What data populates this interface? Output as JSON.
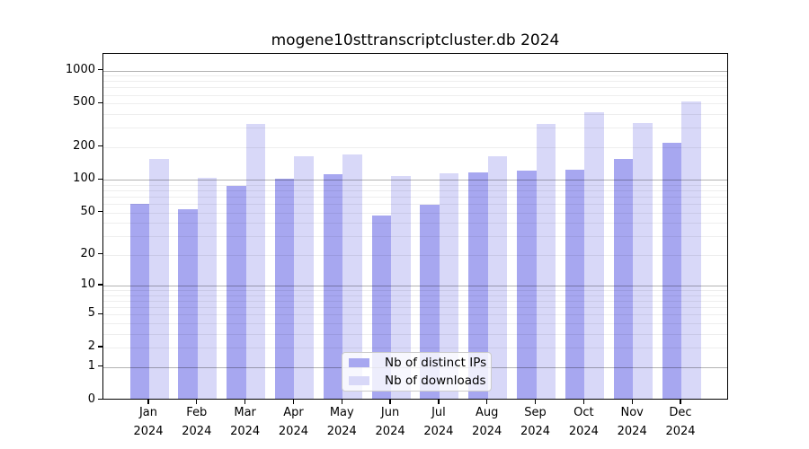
{
  "chart_data": {
    "type": "bar",
    "title": "mogene10sttranscriptcluster.db 2024",
    "categories": [
      "Jan",
      "Feb",
      "Mar",
      "Apr",
      "May",
      "Jun",
      "Jul",
      "Aug",
      "Sep",
      "Oct",
      "Nov",
      "Dec"
    ],
    "year": "2024",
    "series": [
      {
        "name": "Nb of distinct IPs",
        "color": "#a7a7f0",
        "values": [
          58,
          52,
          85,
          98,
          108,
          45,
          57,
          112,
          118,
          120,
          150,
          210
        ]
      },
      {
        "name": "Nb of downloads",
        "color": "#d8d8f8",
        "values": [
          150,
          100,
          315,
          160,
          165,
          105,
          110,
          160,
          315,
          400,
          320,
          500
        ]
      }
    ],
    "yticks": [
      0,
      1,
      2,
      5,
      10,
      20,
      50,
      100,
      200,
      500,
      1000
    ],
    "scale": "log1p",
    "ylim": [
      0,
      1400
    ],
    "xlabel": "",
    "ylabel": "",
    "grid": "on",
    "legend_position": "bottom-center"
  }
}
